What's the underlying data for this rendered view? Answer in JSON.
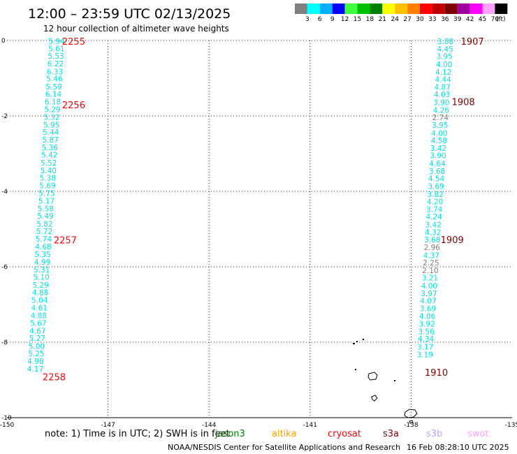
{
  "title": "12:00 – 23:59 UTC 02/13/2025",
  "subtitle": "12 hour collection of altimeter wave heights",
  "legend": {
    "unit": "(ft)",
    "bins": [
      {
        "label": "3",
        "color": "#808080"
      },
      {
        "label": "6",
        "color": "#00ffff"
      },
      {
        "label": "9",
        "color": "#00b0ff"
      },
      {
        "label": "12",
        "color": "#0000ff"
      },
      {
        "label": "15",
        "color": "#40ff40"
      },
      {
        "label": "18",
        "color": "#00c000"
      },
      {
        "label": "21",
        "color": "#008000"
      },
      {
        "label": "24",
        "color": "#ffff00"
      },
      {
        "label": "27",
        "color": "#ffc000"
      },
      {
        "label": "30",
        "color": "#ff8000"
      },
      {
        "label": "33",
        "color": "#ff0000"
      },
      {
        "label": "36",
        "color": "#c00000"
      },
      {
        "label": "39",
        "color": "#800000"
      },
      {
        "label": "42",
        "color": "#a000a0"
      },
      {
        "label": "45",
        "color": "#ff00ff"
      },
      {
        "label": "70",
        "color": "#ffa0ff"
      },
      {
        "label": "",
        "color": "#000000"
      }
    ]
  },
  "axes": {
    "x_ticks": [
      "-150",
      "-147",
      "-144",
      "-141",
      "-138",
      "-135"
    ],
    "y_ticks": [
      "0",
      "-2",
      "-4",
      "-6",
      "-8",
      "-10"
    ]
  },
  "tracks": [
    {
      "color": "#00e0e0",
      "points": [
        {
          "lon": -148.53,
          "lat": -0.02,
          "v": "5.94"
        },
        {
          "lon": -148.53,
          "lat": -0.21,
          "v": "5.61"
        },
        {
          "lon": -148.55,
          "lat": -0.41,
          "v": "5.53"
        },
        {
          "lon": -148.56,
          "lat": -0.61,
          "v": "6.22"
        },
        {
          "lon": -148.58,
          "lat": -0.82,
          "v": "6.33"
        },
        {
          "lon": -148.59,
          "lat": -1.01,
          "v": "5.46"
        },
        {
          "lon": -148.61,
          "lat": -1.22,
          "v": "5.59"
        },
        {
          "lon": -148.62,
          "lat": -1.42,
          "v": "6.14"
        },
        {
          "lon": -148.64,
          "lat": -1.62,
          "v": "6.18"
        },
        {
          "lon": -148.65,
          "lat": -1.82,
          "v": "5.29"
        },
        {
          "lon": -148.67,
          "lat": -2.03,
          "v": "5.32"
        },
        {
          "lon": -148.68,
          "lat": -2.23,
          "v": "5.95"
        },
        {
          "lon": -148.7,
          "lat": -2.43,
          "v": "5.44"
        },
        {
          "lon": -148.71,
          "lat": -2.63,
          "v": "5.87"
        },
        {
          "lon": -148.73,
          "lat": -2.83,
          "v": "5.36"
        },
        {
          "lon": -148.74,
          "lat": -3.03,
          "v": "5.42"
        },
        {
          "lon": -148.76,
          "lat": -3.24,
          "v": "5.52"
        },
        {
          "lon": -148.77,
          "lat": -3.44,
          "v": "5.40"
        },
        {
          "lon": -148.79,
          "lat": -3.64,
          "v": "5.38"
        },
        {
          "lon": -148.8,
          "lat": -3.84,
          "v": "5.69"
        },
        {
          "lon": -148.82,
          "lat": -4.05,
          "v": "5.75"
        },
        {
          "lon": -148.83,
          "lat": -4.25,
          "v": "5.17"
        },
        {
          "lon": -148.85,
          "lat": -4.45,
          "v": "5.58"
        },
        {
          "lon": -148.86,
          "lat": -4.65,
          "v": "5.49"
        },
        {
          "lon": -148.88,
          "lat": -4.86,
          "v": "5.82"
        },
        {
          "lon": -148.89,
          "lat": -5.06,
          "v": "5.72"
        },
        {
          "lon": -148.91,
          "lat": -5.26,
          "v": "5.74"
        },
        {
          "lon": -148.92,
          "lat": -5.46,
          "v": "4.68"
        },
        {
          "lon": -148.94,
          "lat": -5.67,
          "v": "5.35"
        },
        {
          "lon": -148.95,
          "lat": -5.87,
          "v": "4.99"
        },
        {
          "lon": -148.97,
          "lat": -6.07,
          "v": "5.31"
        },
        {
          "lon": -148.98,
          "lat": -6.27,
          "v": "5.10"
        },
        {
          "lon": -149.0,
          "lat": -6.48,
          "v": "5.29"
        },
        {
          "lon": -149.01,
          "lat": -6.68,
          "v": "4.88"
        },
        {
          "lon": -149.03,
          "lat": -6.88,
          "v": "5.04"
        },
        {
          "lon": -149.04,
          "lat": -7.08,
          "v": "4.61"
        },
        {
          "lon": -149.06,
          "lat": -7.29,
          "v": "4.88"
        },
        {
          "lon": -149.07,
          "lat": -7.49,
          "v": "5.67"
        },
        {
          "lon": -149.09,
          "lat": -7.69,
          "v": "4.67"
        },
        {
          "lon": -149.1,
          "lat": -7.89,
          "v": "5.27"
        },
        {
          "lon": -149.12,
          "lat": -8.1,
          "v": "5.00"
        },
        {
          "lon": -149.13,
          "lat": -8.3,
          "v": "5.25"
        },
        {
          "lon": -149.15,
          "lat": -8.5,
          "v": "4.98"
        },
        {
          "lon": -149.16,
          "lat": -8.7,
          "v": "4.17"
        }
      ],
      "times": [
        {
          "lon": -148.02,
          "lat": -0.02,
          "t": "2255",
          "color": "#ff0000"
        },
        {
          "lon": -148.02,
          "lat": -1.7,
          "t": "2256",
          "color": "#ff0000"
        },
        {
          "lon": -148.27,
          "lat": -5.29,
          "t": "2257",
          "color": "#ff0000"
        },
        {
          "lon": -148.6,
          "lat": -8.92,
          "t": "2258",
          "color": "#ff0000"
        }
      ]
    },
    {
      "color": "#00e0e0",
      "points": [
        {
          "lon": -136.98,
          "lat": -0.02,
          "v": "3.88"
        },
        {
          "lon": -136.99,
          "lat": -0.22,
          "v": "4.45"
        },
        {
          "lon": -137.01,
          "lat": -0.42,
          "v": "3.95"
        },
        {
          "lon": -137.02,
          "lat": -0.63,
          "v": "4.00"
        },
        {
          "lon": -137.04,
          "lat": -0.83,
          "v": "4.12"
        },
        {
          "lon": -137.05,
          "lat": -1.03,
          "v": "4.44"
        },
        {
          "lon": -137.07,
          "lat": -1.23,
          "v": "4.87"
        },
        {
          "lon": -137.08,
          "lat": -1.43,
          "v": "4.03"
        },
        {
          "lon": -137.1,
          "lat": -1.64,
          "v": "3.90"
        },
        {
          "lon": -137.11,
          "lat": -1.84,
          "v": "4.26"
        },
        {
          "lon": -137.13,
          "lat": -2.04,
          "v": "2.74",
          "c": "#808080"
        },
        {
          "lon": -137.14,
          "lat": -2.24,
          "v": "3.95"
        },
        {
          "lon": -137.16,
          "lat": -2.45,
          "v": "4.00"
        },
        {
          "lon": -137.17,
          "lat": -2.65,
          "v": "4.58"
        },
        {
          "lon": -137.19,
          "lat": -2.85,
          "v": "3.42"
        },
        {
          "lon": -137.2,
          "lat": -3.05,
          "v": "3.90"
        },
        {
          "lon": -137.22,
          "lat": -3.26,
          "v": "4.64"
        },
        {
          "lon": -137.23,
          "lat": -3.46,
          "v": "3.68"
        },
        {
          "lon": -137.25,
          "lat": -3.66,
          "v": "4.54"
        },
        {
          "lon": -137.26,
          "lat": -3.86,
          "v": "3.69"
        },
        {
          "lon": -137.28,
          "lat": -4.07,
          "v": "3.82"
        },
        {
          "lon": -137.29,
          "lat": -4.27,
          "v": "4.20"
        },
        {
          "lon": -137.31,
          "lat": -4.47,
          "v": "3.74"
        },
        {
          "lon": -137.32,
          "lat": -4.67,
          "v": "4.24"
        },
        {
          "lon": -137.34,
          "lat": -4.88,
          "v": "3.42"
        },
        {
          "lon": -137.35,
          "lat": -5.08,
          "v": "4.32"
        },
        {
          "lon": -137.37,
          "lat": -5.28,
          "v": "3.68"
        },
        {
          "lon": -137.38,
          "lat": -5.48,
          "v": "2.96",
          "c": "#808080"
        },
        {
          "lon": -137.4,
          "lat": -5.69,
          "v": "4.37"
        },
        {
          "lon": -137.41,
          "lat": -5.89,
          "v": "2.25",
          "c": "#808080"
        },
        {
          "lon": -137.43,
          "lat": -6.09,
          "v": "2.10",
          "c": "#808080"
        },
        {
          "lon": -137.44,
          "lat": -6.29,
          "v": "3.21"
        },
        {
          "lon": -137.46,
          "lat": -6.5,
          "v": "4.00"
        },
        {
          "lon": -137.47,
          "lat": -6.7,
          "v": "3.97"
        },
        {
          "lon": -137.49,
          "lat": -6.9,
          "v": "4.07"
        },
        {
          "lon": -137.5,
          "lat": -7.1,
          "v": "3.69"
        },
        {
          "lon": -137.52,
          "lat": -7.31,
          "v": "4.06"
        },
        {
          "lon": -137.53,
          "lat": -7.51,
          "v": "3.92"
        },
        {
          "lon": -137.55,
          "lat": -7.71,
          "v": "3.56"
        },
        {
          "lon": -137.56,
          "lat": -7.91,
          "v": "4.34"
        },
        {
          "lon": -137.58,
          "lat": -8.12,
          "v": "3.17"
        },
        {
          "lon": -137.59,
          "lat": -8.32,
          "v": "3.19"
        }
      ],
      "times": [
        {
          "lon": -136.18,
          "lat": -0.02,
          "t": "1907",
          "color": "#800000"
        },
        {
          "lon": -136.45,
          "lat": -1.62,
          "t": "1908",
          "color": "#800000"
        },
        {
          "lon": -136.78,
          "lat": -5.28,
          "t": "1909",
          "color": "#800000"
        },
        {
          "lon": -137.25,
          "lat": -8.8,
          "t": "1910",
          "color": "#800000"
        }
      ]
    }
  ],
  "notes": {
    "prefix": "note:  1) Time is in UTC; 2) SWH is in feet",
    "satellites": [
      {
        "name": "jason3",
        "color": "#008000"
      },
      {
        "name": "altika",
        "color": "#ffa000"
      },
      {
        "name": "cryosat",
        "color": "#ff0000"
      },
      {
        "name": "s3a",
        "color": "#800000"
      },
      {
        "name": "s3b",
        "color": "#c0a0ff"
      },
      {
        "name": "swot",
        "color": "#ffa0ff"
      }
    ]
  },
  "footer": {
    "agency": "NOAA/NESDIS Center for Satellite Applications and Research",
    "timestamp": "16 Feb 08:28:10 UTC 2025"
  }
}
